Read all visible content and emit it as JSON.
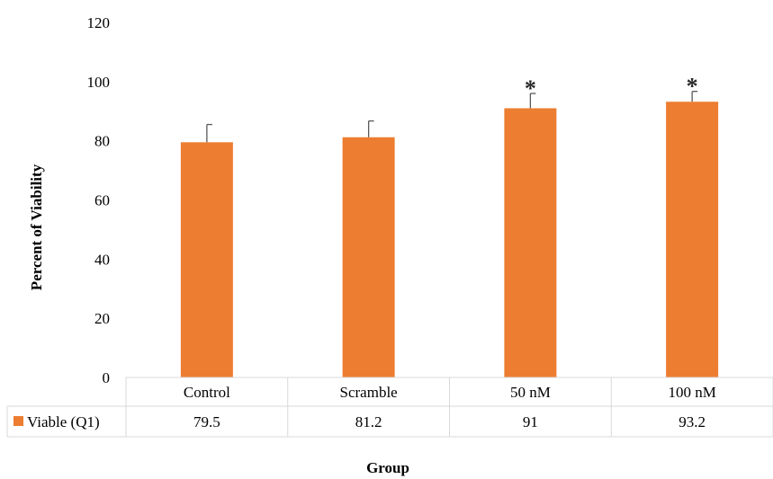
{
  "chart_data": {
    "type": "bar",
    "categories": [
      "Control",
      "Scramble",
      "50 nM",
      "100 nM"
    ],
    "series": [
      {
        "name": "Viable (Q1)",
        "values": [
          79.5,
          81.2,
          91,
          93.2
        ],
        "error": [
          6,
          5.5,
          5,
          3.5
        ],
        "color": "#ED7D31"
      }
    ],
    "significance_markers": [
      "",
      "",
      "*",
      "*"
    ],
    "data_table": {
      "legend_label": "Viable (Q1)",
      "cells": [
        "79.5",
        "81.2",
        "91",
        "93.2"
      ]
    },
    "y_ticks": [
      "0",
      "20",
      "40",
      "60",
      "80",
      "100",
      "120"
    ],
    "ylim": [
      0,
      120
    ],
    "ylabel": "Percent of Viability",
    "xlabel": "Group",
    "grid": false,
    "legend_placement": "data-table-left"
  }
}
